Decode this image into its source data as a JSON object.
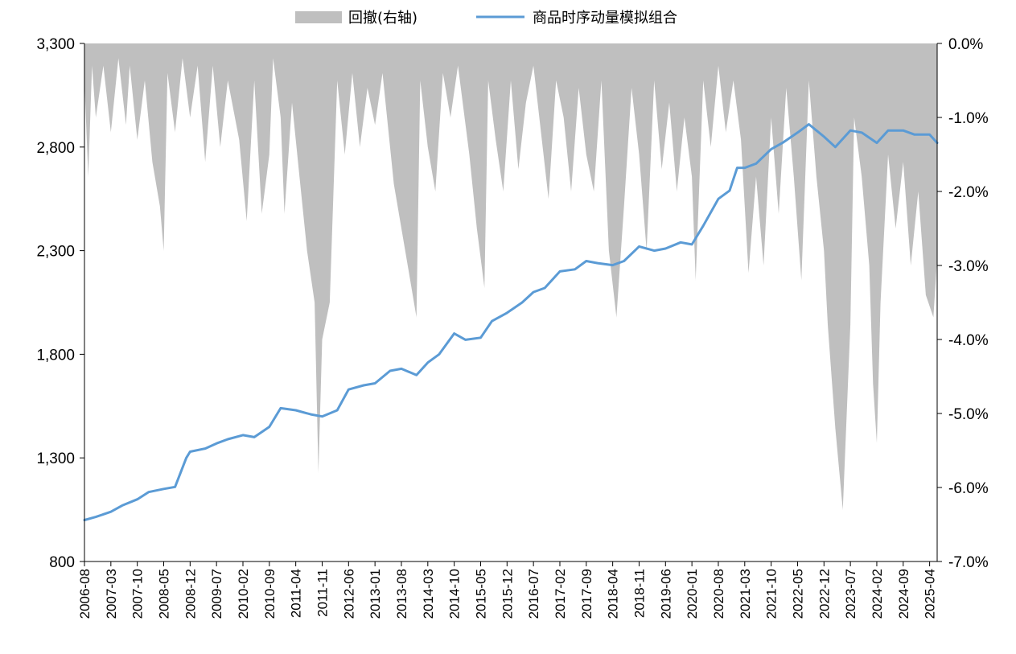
{
  "chart_data": {
    "type": "line",
    "legend": {
      "position": "top-center",
      "items": [
        {
          "name": "回撤(右轴)",
          "kind": "area",
          "color": "#bfbfbf"
        },
        {
          "name": "商品时序动量模拟组合",
          "kind": "line",
          "color": "#5b9bd5"
        }
      ]
    },
    "y_left": {
      "ylim": [
        800,
        3300
      ],
      "ticks": [
        "3,300",
        "2,800",
        "2,300",
        "1,800",
        "1,300",
        "800"
      ],
      "tick_values": [
        3300,
        2800,
        2300,
        1800,
        1300,
        800
      ]
    },
    "y_right": {
      "ylim": [
        -7.0,
        0.0
      ],
      "ticks": [
        "0.0%",
        "-1.0%",
        "-2.0%",
        "-3.0%",
        "-4.0%",
        "-5.0%",
        "-6.0%",
        "-7.0%"
      ],
      "tick_values": [
        0,
        -1,
        -2,
        -3,
        -4,
        -5,
        -6,
        -7
      ]
    },
    "x_ticks": [
      "2006-08",
      "2007-03",
      "2007-10",
      "2008-05",
      "2008-12",
      "2009-07",
      "2010-02",
      "2010-09",
      "2011-04",
      "2011-11",
      "2012-06",
      "2013-01",
      "2013-08",
      "2014-03",
      "2014-10",
      "2015-05",
      "2015-12",
      "2016-07",
      "2017-02",
      "2017-09",
      "2018-04",
      "2018-11",
      "2019-06",
      "2020-01",
      "2020-08",
      "2021-03",
      "2021-10",
      "2022-05",
      "2022-12",
      "2023-07",
      "2024-02",
      "2024-09",
      "2025-04"
    ],
    "x_range": [
      "2006-08",
      "2025-06"
    ],
    "series": [
      {
        "name": "商品时序动量模拟组合",
        "axis": "left",
        "points": [
          [
            "2006-08",
            1000
          ],
          [
            "2006-11",
            1015
          ],
          [
            "2007-03",
            1040
          ],
          [
            "2007-06",
            1070
          ],
          [
            "2007-10",
            1100
          ],
          [
            "2008-01",
            1135
          ],
          [
            "2008-05",
            1150
          ],
          [
            "2008-08",
            1160
          ],
          [
            "2008-11",
            1300
          ],
          [
            "2008-12",
            1330
          ],
          [
            "2009-04",
            1345
          ],
          [
            "2009-07",
            1370
          ],
          [
            "2009-10",
            1390
          ],
          [
            "2010-02",
            1410
          ],
          [
            "2010-05",
            1400
          ],
          [
            "2010-09",
            1450
          ],
          [
            "2010-12",
            1540
          ],
          [
            "2011-04",
            1530
          ],
          [
            "2011-08",
            1510
          ],
          [
            "2011-11",
            1500
          ],
          [
            "2012-03",
            1530
          ],
          [
            "2012-06",
            1630
          ],
          [
            "2012-10",
            1650
          ],
          [
            "2013-01",
            1660
          ],
          [
            "2013-05",
            1720
          ],
          [
            "2013-08",
            1730
          ],
          [
            "2013-12",
            1700
          ],
          [
            "2014-03",
            1760
          ],
          [
            "2014-06",
            1800
          ],
          [
            "2014-10",
            1900
          ],
          [
            "2015-01",
            1870
          ],
          [
            "2015-05",
            1880
          ],
          [
            "2015-08",
            1960
          ],
          [
            "2015-12",
            2000
          ],
          [
            "2016-04",
            2050
          ],
          [
            "2016-07",
            2100
          ],
          [
            "2016-10",
            2120
          ],
          [
            "2017-02",
            2200
          ],
          [
            "2017-06",
            2210
          ],
          [
            "2017-09",
            2250
          ],
          [
            "2017-12",
            2240
          ],
          [
            "2018-04",
            2230
          ],
          [
            "2018-07",
            2250
          ],
          [
            "2018-11",
            2320
          ],
          [
            "2019-03",
            2300
          ],
          [
            "2019-06",
            2310
          ],
          [
            "2019-10",
            2340
          ],
          [
            "2020-01",
            2330
          ],
          [
            "2020-04",
            2420
          ],
          [
            "2020-08",
            2550
          ],
          [
            "2020-11",
            2590
          ],
          [
            "2021-01",
            2700
          ],
          [
            "2021-03",
            2700
          ],
          [
            "2021-06",
            2720
          ],
          [
            "2021-10",
            2790
          ],
          [
            "2022-01",
            2820
          ],
          [
            "2022-05",
            2870
          ],
          [
            "2022-08",
            2910
          ],
          [
            "2022-12",
            2850
          ],
          [
            "2023-03",
            2800
          ],
          [
            "2023-07",
            2880
          ],
          [
            "2023-10",
            2870
          ],
          [
            "2024-02",
            2820
          ],
          [
            "2024-05",
            2880
          ],
          [
            "2024-09",
            2880
          ],
          [
            "2024-12",
            2860
          ],
          [
            "2025-04",
            2860
          ],
          [
            "2025-06",
            2820
          ]
        ]
      },
      {
        "name": "回撤(右轴)",
        "axis": "right",
        "points": [
          [
            "2006-08",
            -0.5
          ],
          [
            "2006-09",
            -1.8
          ],
          [
            "2006-10",
            -0.3
          ],
          [
            "2006-11",
            -1.0
          ],
          [
            "2007-01",
            -0.3
          ],
          [
            "2007-03",
            -1.2
          ],
          [
            "2007-05",
            -0.2
          ],
          [
            "2007-07",
            -1.1
          ],
          [
            "2007-08",
            -0.3
          ],
          [
            "2007-10",
            -1.3
          ],
          [
            "2007-12",
            -0.5
          ],
          [
            "2008-02",
            -1.6
          ],
          [
            "2008-04",
            -2.2
          ],
          [
            "2008-05",
            -2.8
          ],
          [
            "2008-06",
            -0.4
          ],
          [
            "2008-08",
            -1.2
          ],
          [
            "2008-10",
            -0.2
          ],
          [
            "2008-12",
            -1.0
          ],
          [
            "2009-02",
            -0.3
          ],
          [
            "2009-04",
            -1.6
          ],
          [
            "2009-06",
            -0.3
          ],
          [
            "2009-08",
            -1.4
          ],
          [
            "2009-10",
            -0.5
          ],
          [
            "2010-01",
            -1.3
          ],
          [
            "2010-03",
            -2.4
          ],
          [
            "2010-05",
            -0.5
          ],
          [
            "2010-07",
            -2.3
          ],
          [
            "2010-09",
            -1.5
          ],
          [
            "2010-10",
            -0.2
          ],
          [
            "2010-12",
            -1.0
          ],
          [
            "2011-01",
            -2.3
          ],
          [
            "2011-03",
            -0.8
          ],
          [
            "2011-05",
            -1.8
          ],
          [
            "2011-07",
            -2.8
          ],
          [
            "2011-09",
            -3.5
          ],
          [
            "2011-10",
            -5.8
          ],
          [
            "2011-11",
            -4.0
          ],
          [
            "2012-01",
            -3.5
          ],
          [
            "2012-03",
            -0.5
          ],
          [
            "2012-05",
            -1.5
          ],
          [
            "2012-07",
            -0.4
          ],
          [
            "2012-09",
            -1.4
          ],
          [
            "2012-11",
            -0.6
          ],
          [
            "2013-01",
            -1.1
          ],
          [
            "2013-03",
            -0.4
          ],
          [
            "2013-06",
            -1.9
          ],
          [
            "2013-08",
            -2.5
          ],
          [
            "2013-10",
            -3.1
          ],
          [
            "2013-12",
            -3.7
          ],
          [
            "2014-01",
            -0.5
          ],
          [
            "2014-03",
            -1.4
          ],
          [
            "2014-05",
            -2.0
          ],
          [
            "2014-07",
            -0.4
          ],
          [
            "2014-09",
            -1.0
          ],
          [
            "2014-11",
            -0.3
          ],
          [
            "2015-02",
            -1.5
          ],
          [
            "2015-04",
            -2.5
          ],
          [
            "2015-06",
            -3.3
          ],
          [
            "2015-07",
            -0.5
          ],
          [
            "2015-09",
            -1.3
          ],
          [
            "2015-11",
            -2.0
          ],
          [
            "2016-01",
            -0.5
          ],
          [
            "2016-03",
            -1.7
          ],
          [
            "2016-05",
            -0.8
          ],
          [
            "2016-07",
            -0.3
          ],
          [
            "2016-09",
            -1.2
          ],
          [
            "2016-11",
            -2.1
          ],
          [
            "2017-01",
            -0.5
          ],
          [
            "2017-03",
            -1.0
          ],
          [
            "2017-05",
            -2.0
          ],
          [
            "2017-07",
            -0.6
          ],
          [
            "2017-09",
            -1.5
          ],
          [
            "2017-11",
            -2.0
          ],
          [
            "2018-01",
            -0.5
          ],
          [
            "2018-03",
            -2.8
          ],
          [
            "2018-05",
            -3.7
          ],
          [
            "2018-07",
            -2.2
          ],
          [
            "2018-09",
            -0.6
          ],
          [
            "2018-11",
            -1.5
          ],
          [
            "2019-01",
            -2.8
          ],
          [
            "2019-03",
            -0.5
          ],
          [
            "2019-05",
            -1.7
          ],
          [
            "2019-07",
            -0.8
          ],
          [
            "2019-09",
            -2.0
          ],
          [
            "2019-11",
            -1.0
          ],
          [
            "2020-01",
            -1.8
          ],
          [
            "2020-02",
            -3.2
          ],
          [
            "2020-04",
            -0.5
          ],
          [
            "2020-06",
            -1.4
          ],
          [
            "2020-08",
            -0.3
          ],
          [
            "2020-10",
            -1.2
          ],
          [
            "2020-12",
            -0.5
          ],
          [
            "2021-02",
            -1.3
          ],
          [
            "2021-04",
            -3.1
          ],
          [
            "2021-06",
            -1.8
          ],
          [
            "2021-08",
            -3.0
          ],
          [
            "2021-10",
            -1.0
          ],
          [
            "2021-12",
            -2.3
          ],
          [
            "2022-02",
            -0.6
          ],
          [
            "2022-04",
            -1.8
          ],
          [
            "2022-06",
            -3.2
          ],
          [
            "2022-08",
            -0.5
          ],
          [
            "2022-10",
            -1.8
          ],
          [
            "2022-12",
            -2.8
          ],
          [
            "2023-01",
            -3.8
          ],
          [
            "2023-03",
            -5.2
          ],
          [
            "2023-05",
            -6.3
          ],
          [
            "2023-07",
            -3.8
          ],
          [
            "2023-08",
            -1.0
          ],
          [
            "2023-10",
            -1.8
          ],
          [
            "2023-12",
            -3.0
          ],
          [
            "2024-01",
            -4.6
          ],
          [
            "2024-02",
            -5.4
          ],
          [
            "2024-03",
            -3.5
          ],
          [
            "2024-05",
            -1.5
          ],
          [
            "2024-07",
            -2.5
          ],
          [
            "2024-09",
            -1.6
          ],
          [
            "2024-11",
            -3.0
          ],
          [
            "2025-01",
            -2.0
          ],
          [
            "2025-03",
            -3.4
          ],
          [
            "2025-05",
            -3.7
          ],
          [
            "2025-06",
            -2.9
          ]
        ]
      }
    ]
  }
}
